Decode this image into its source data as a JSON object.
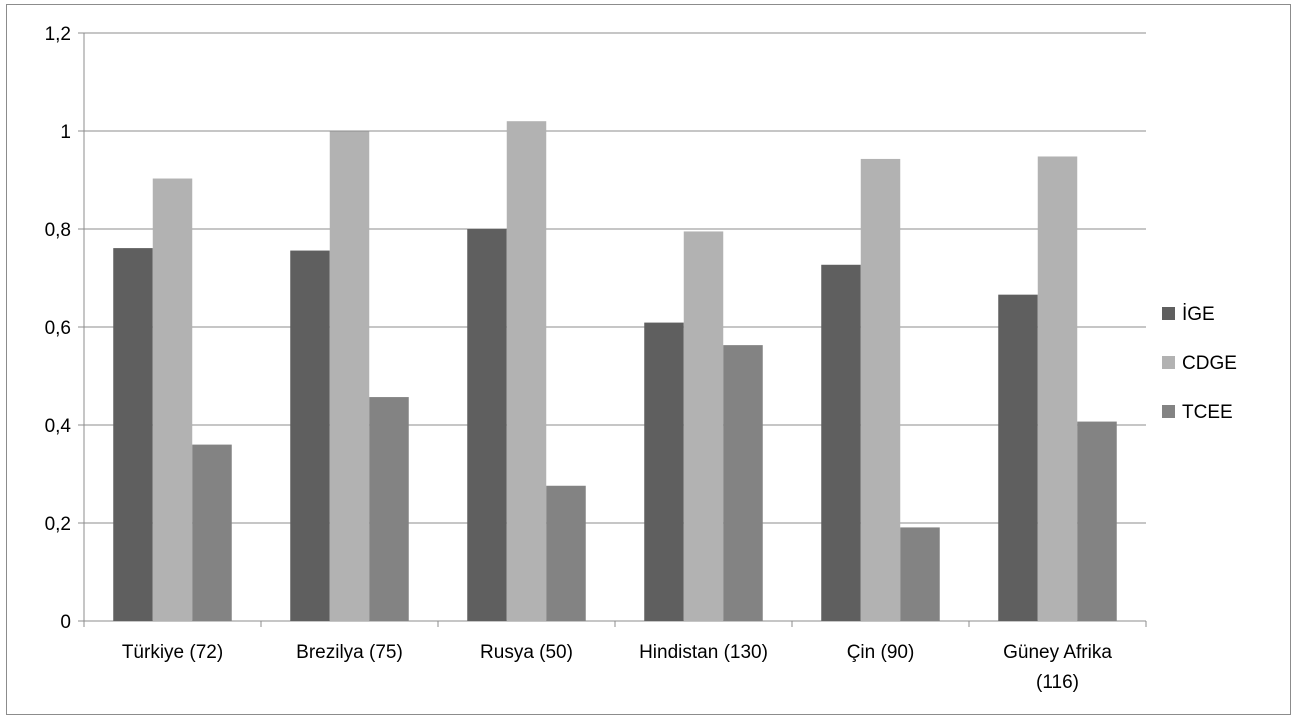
{
  "chart_data": {
    "type": "bar",
    "title": "",
    "xlabel": "",
    "ylabel": "",
    "ylim": [
      0,
      1.2
    ],
    "yticks": [
      "0",
      "0,2",
      "0,4",
      "0,6",
      "0,8",
      "1",
      "1,2"
    ],
    "ytick_values": [
      0,
      0.2,
      0.4,
      0.6,
      0.8,
      1.0,
      1.2
    ],
    "grid": true,
    "legend_position": "right",
    "categories": [
      [
        "Türkiye (72)"
      ],
      [
        "Brezilya (75)"
      ],
      [
        "Rusya (50)"
      ],
      [
        "Hindistan (130)"
      ],
      [
        "Çin (90)"
      ],
      [
        "Güney Afrika",
        "(116)"
      ]
    ],
    "series": [
      {
        "name": "İGE",
        "color": "#5f5f5f",
        "values": [
          0.761,
          0.756,
          0.8,
          0.609,
          0.727,
          0.666
        ]
      },
      {
        "name": "CDGE",
        "color": "#b2b2b2",
        "values": [
          0.903,
          0.999,
          1.02,
          0.795,
          0.943,
          0.948
        ]
      },
      {
        "name": "TCEE",
        "color": "#838383",
        "values": [
          0.36,
          0.457,
          0.276,
          0.563,
          0.191,
          0.407
        ]
      }
    ]
  }
}
